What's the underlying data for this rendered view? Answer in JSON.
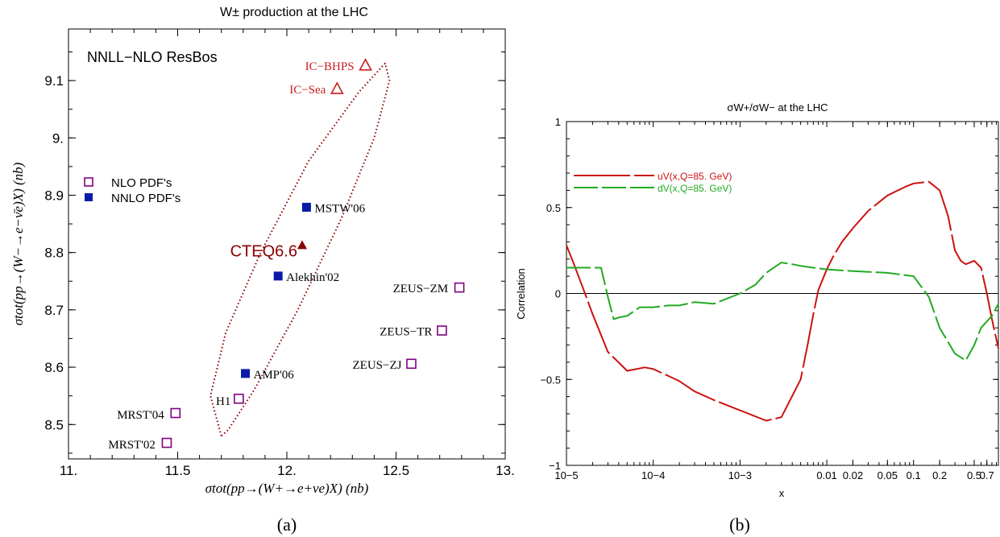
{
  "panel_a_label": "(a)",
  "panel_b_label": "(b)",
  "colors": {
    "nlo": "#800080",
    "nnlo": "#0a1aa6",
    "ic": "#c81e1e",
    "cteq": "#8b0000",
    "u_curve": "#cc1111",
    "d_curve": "#22aa22"
  },
  "chart_data": [
    {
      "type": "scatter",
      "title": "W± production at the LHC",
      "annotation": "NNLL−NLO ResBos",
      "xlabel": "σtot(pp→(W+→e+νe)X) (nb)",
      "ylabel": "σtot(pp→(W−→e−ν̄e)X) (nb)",
      "xlim": [
        11.0,
        13.0
      ],
      "ylim": [
        8.44,
        9.19
      ],
      "xticks": [
        11.0,
        11.5,
        12.0,
        12.5,
        13.0
      ],
      "xtick_labels": [
        "11.",
        "11.5",
        "12.",
        "12.5",
        "13."
      ],
      "yticks": [
        8.5,
        8.6,
        8.7,
        8.8,
        8.9,
        9.0,
        9.1
      ],
      "ytick_labels": [
        "8.5",
        "8.6",
        "8.7",
        "8.8",
        "8.9",
        "9.",
        "9.1"
      ],
      "legend": [
        {
          "label": "NLO PDF's",
          "marker": "open-square"
        },
        {
          "label": "NNLO PDF's",
          "marker": "filled-square"
        }
      ],
      "legend_position": "middle-left",
      "series": [
        {
          "name": "NLO PDF's",
          "marker": "open-square",
          "points": [
            {
              "label": "MRST'02",
              "x": 11.45,
              "y": 8.468
            },
            {
              "label": "MRST'04",
              "x": 11.49,
              "y": 8.52
            },
            {
              "label": "H1",
              "x": 11.78,
              "y": 8.545
            },
            {
              "label": "ZEUS−ZJ",
              "x": 12.57,
              "y": 8.606
            },
            {
              "label": "ZEUS−TR",
              "x": 12.71,
              "y": 8.664
            },
            {
              "label": "ZEUS−ZM",
              "x": 12.79,
              "y": 8.739
            }
          ]
        },
        {
          "name": "NNLO PDF's",
          "marker": "filled-square",
          "points": [
            {
              "label": "AMP'06",
              "x": 11.81,
              "y": 8.589
            },
            {
              "label": "Alekhin'02",
              "x": 11.96,
              "y": 8.759
            },
            {
              "label": "MSTW'06",
              "x": 12.09,
              "y": 8.879
            }
          ]
        },
        {
          "marker": "open-triangle",
          "points": [
            {
              "label": "IC−BHPS",
              "x": 12.36,
              "y": 9.127
            },
            {
              "label": "IC−Sea",
              "x": 12.23,
              "y": 9.086
            }
          ]
        },
        {
          "marker": "filled-triangle",
          "points": [
            {
              "label": "CTEQ6.6",
              "x": 12.07,
              "y": 8.813
            }
          ]
        }
      ],
      "ellipse_outline": [
        [
          11.7,
          8.48
        ],
        [
          11.65,
          8.55
        ],
        [
          11.72,
          8.66
        ],
        [
          11.88,
          8.8
        ],
        [
          12.1,
          8.96
        ],
        [
          12.33,
          9.08
        ],
        [
          12.45,
          9.13
        ],
        [
          12.47,
          9.1
        ],
        [
          12.4,
          9.0
        ],
        [
          12.25,
          8.86
        ],
        [
          12.05,
          8.7
        ],
        [
          11.85,
          8.56
        ],
        [
          11.73,
          8.49
        ],
        [
          11.7,
          8.48
        ]
      ],
      "grid": false
    },
    {
      "type": "line",
      "title": "σW+/σW− at the LHC",
      "xlabel": "x",
      "ylabel": "Correlation",
      "x_scale": "log",
      "xlim": [
        1e-05,
        0.95
      ],
      "ylim": [
        -1,
        1
      ],
      "xtick_values": [
        1e-05,
        0.0001,
        0.001,
        0.01,
        0.02,
        0.05,
        0.1,
        0.2,
        0.5,
        0.7
      ],
      "xtick_labels": [
        "10−5",
        "10−4",
        "10−3",
        "0.01",
        "0.02",
        "0.05",
        "0.1",
        "0.2",
        "0.5",
        "0.7"
      ],
      "ytick_values": [
        -1,
        -0.5,
        0,
        0.5,
        1
      ],
      "ytick_labels": [
        "−1",
        "−0.5",
        "0",
        "0.5",
        "1"
      ],
      "legend_position": "top-left",
      "series": [
        {
          "name": "uV(x,Q=85. GeV)",
          "style": "long-dash",
          "x": [
            1e-05,
            1.2e-05,
            1.5e-05,
            2e-05,
            3e-05,
            5e-05,
            8e-05,
            0.0001,
            0.00015,
            0.0002,
            0.0003,
            0.0005,
            0.001,
            0.002,
            0.003,
            0.005,
            0.006,
            0.007,
            0.008,
            0.01,
            0.012,
            0.015,
            0.02,
            0.03,
            0.05,
            0.08,
            0.1,
            0.15,
            0.2,
            0.25,
            0.3,
            0.35,
            0.4,
            0.5,
            0.6,
            0.7,
            0.8,
            0.95
          ],
          "y": [
            0.28,
            0.18,
            0.05,
            -0.12,
            -0.34,
            -0.45,
            -0.43,
            -0.44,
            -0.48,
            -0.51,
            -0.57,
            -0.62,
            -0.68,
            -0.74,
            -0.72,
            -0.5,
            -0.3,
            -0.12,
            0.02,
            0.14,
            0.22,
            0.3,
            0.38,
            0.48,
            0.57,
            0.62,
            0.64,
            0.65,
            0.6,
            0.45,
            0.25,
            0.19,
            0.17,
            0.19,
            0.15,
            0.0,
            -0.15,
            -0.32
          ]
        },
        {
          "name": "dV(x,Q=85. GeV)",
          "style": "long-dash",
          "x": [
            1e-05,
            2e-05,
            2.5e-05,
            3e-05,
            3.5e-05,
            4e-05,
            5e-05,
            7e-05,
            0.0001,
            0.00015,
            0.0002,
            0.0003,
            0.0005,
            0.001,
            0.0015,
            0.002,
            0.003,
            0.004,
            0.005,
            0.007,
            0.01,
            0.02,
            0.05,
            0.1,
            0.15,
            0.2,
            0.3,
            0.4,
            0.5,
            0.6,
            0.8,
            0.95
          ],
          "y": [
            0.15,
            0.15,
            0.15,
            -0.02,
            -0.15,
            -0.14,
            -0.13,
            -0.08,
            -0.08,
            -0.07,
            -0.07,
            -0.05,
            -0.06,
            0.0,
            0.05,
            0.12,
            0.18,
            0.17,
            0.16,
            0.15,
            0.14,
            0.13,
            0.12,
            0.1,
            -0.02,
            -0.2,
            -0.35,
            -0.39,
            -0.3,
            -0.2,
            -0.13,
            -0.06
          ]
        }
      ],
      "reference_line_y": 0,
      "grid": false
    }
  ]
}
